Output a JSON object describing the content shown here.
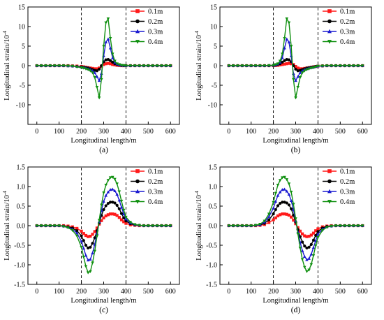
{
  "figure": {
    "panels": [
      {
        "caption": "(a)"
      },
      {
        "caption": "(b)"
      },
      {
        "caption": "(c)"
      },
      {
        "caption": "(d)"
      }
    ]
  },
  "chart_data": [
    {
      "type": "line",
      "panel_label": "(a)",
      "xlabel": "Longitudinal length/m",
      "ylabel": "Longitudinal strain/10",
      "ylabel_exponent": "-4",
      "xlim": [
        -40,
        640
      ],
      "ylim": [
        -15,
        15
      ],
      "xticks": [
        0,
        100,
        200,
        300,
        400,
        500,
        600
      ],
      "yticks": [
        -10,
        -5,
        0,
        5,
        10,
        15
      ],
      "ytick_labels": [
        "-10",
        "-5",
        "0",
        "5",
        "10",
        "15"
      ],
      "grid": false,
      "legend_position": "top-right",
      "reference_lines_x": [
        200,
        400
      ],
      "x": [
        0,
        20,
        40,
        60,
        80,
        100,
        120,
        140,
        160,
        180,
        200,
        210,
        220,
        230,
        240,
        250,
        260,
        270,
        280,
        290,
        300,
        310,
        320,
        330,
        340,
        350,
        360,
        370,
        380,
        390,
        400,
        420,
        440,
        460,
        480,
        500,
        520,
        540,
        560,
        580,
        600
      ],
      "series": [
        {
          "name": "0.1m",
          "color": "#ff1a1a",
          "marker": "square",
          "values": [
            0,
            0,
            0,
            0,
            0,
            0,
            0,
            0,
            -0.05,
            -0.1,
            -0.2,
            -0.3,
            -0.4,
            -0.5,
            -0.6,
            -0.7,
            -0.8,
            -0.8,
            -0.6,
            -0.2,
            0.3,
            0.5,
            0.6,
            0.5,
            0.3,
            0.2,
            0.1,
            0.05,
            0,
            0,
            0,
            0,
            0,
            0,
            0,
            0,
            0,
            0,
            0,
            0,
            0
          ]
        },
        {
          "name": "0.2m",
          "color": "#000000",
          "marker": "circle",
          "values": [
            0,
            0,
            0,
            0,
            0,
            0,
            0,
            -0.05,
            -0.1,
            -0.2,
            -0.3,
            -0.4,
            -0.5,
            -0.6,
            -0.8,
            -1.0,
            -1.2,
            -1.3,
            -0.9,
            0,
            1.0,
            1.5,
            1.6,
            1.3,
            0.9,
            0.5,
            0.3,
            0.15,
            0.05,
            0,
            0,
            0,
            0,
            0,
            0,
            0,
            0,
            0,
            0,
            0,
            0
          ]
        },
        {
          "name": "0.3m",
          "color": "#1a1ad0",
          "marker": "triangle-up",
          "values": [
            0,
            0,
            0,
            0,
            0,
            0,
            0,
            -0.05,
            -0.1,
            -0.2,
            -0.4,
            -0.5,
            -0.6,
            -0.8,
            -1.0,
            -1.3,
            -1.8,
            -2.8,
            -3.8,
            -2.0,
            2.5,
            6.0,
            6.8,
            4.5,
            2.0,
            0.8,
            0.4,
            0.2,
            0.1,
            0.05,
            0,
            0,
            0,
            0,
            0,
            0,
            0,
            0,
            0,
            0,
            0
          ]
        },
        {
          "name": "0.4m",
          "color": "#109010",
          "marker": "triangle-down",
          "values": [
            0,
            0,
            0,
            0,
            0,
            0,
            0,
            -0.05,
            -0.1,
            -0.3,
            -0.5,
            -0.6,
            -0.8,
            -1.0,
            -1.3,
            -1.8,
            -3.0,
            -5.5,
            -8.2,
            -3.5,
            5.0,
            11.0,
            12.0,
            7.0,
            3.0,
            1.2,
            0.5,
            0.3,
            0.1,
            0.05,
            0,
            0,
            0,
            0,
            0,
            0,
            0,
            0,
            0,
            0,
            0
          ]
        }
      ]
    },
    {
      "type": "line",
      "panel_label": "(b)",
      "xlabel": "Longitudinal length/m",
      "ylabel": "Longitudinal strain/10",
      "ylabel_exponent": "-4",
      "xlim": [
        -40,
        640
      ],
      "ylim": [
        -15,
        15
      ],
      "xticks": [
        0,
        100,
        200,
        300,
        400,
        500,
        600
      ],
      "yticks": [
        -10,
        -5,
        0,
        5,
        10,
        15
      ],
      "ytick_labels": [
        "-10",
        "-5",
        "0",
        "5",
        "10",
        "15"
      ],
      "grid": false,
      "legend_position": "top-right",
      "reference_lines_x": [
        200,
        400
      ],
      "x": [
        0,
        20,
        40,
        60,
        80,
        100,
        120,
        140,
        160,
        180,
        200,
        210,
        220,
        230,
        240,
        250,
        260,
        270,
        280,
        290,
        300,
        310,
        320,
        330,
        340,
        350,
        360,
        370,
        380,
        390,
        400,
        420,
        440,
        460,
        480,
        500,
        520,
        540,
        560,
        580,
        600
      ],
      "series": [
        {
          "name": "0.1m",
          "color": "#ff1a1a",
          "marker": "square",
          "values": [
            0,
            0,
            0,
            0,
            0,
            0,
            0,
            0,
            0,
            0,
            0,
            0.05,
            0.1,
            0.2,
            0.3,
            0.4,
            0.5,
            0.6,
            0.5,
            0.3,
            -0.2,
            -0.6,
            -0.8,
            -0.8,
            -0.7,
            -0.6,
            -0.5,
            -0.4,
            -0.3,
            -0.2,
            -0.1,
            -0.05,
            0,
            0,
            0,
            0,
            0,
            0,
            0,
            0,
            0
          ]
        },
        {
          "name": "0.2m",
          "color": "#000000",
          "marker": "circle",
          "values": [
            0,
            0,
            0,
            0,
            0,
            0,
            0,
            0,
            0,
            0,
            0.05,
            0.15,
            0.3,
            0.5,
            0.9,
            1.3,
            1.6,
            1.5,
            1.0,
            0,
            -0.9,
            -1.3,
            -1.2,
            -1.0,
            -0.8,
            -0.6,
            -0.5,
            -0.4,
            -0.3,
            -0.2,
            -0.1,
            -0.05,
            0,
            0,
            0,
            0,
            0,
            0,
            0,
            0,
            0
          ]
        },
        {
          "name": "0.3m",
          "color": "#1a1ad0",
          "marker": "triangle-up",
          "values": [
            0,
            0,
            0,
            0,
            0,
            0,
            0,
            0,
            0,
            0.05,
            0.1,
            0.2,
            0.4,
            0.8,
            2.0,
            4.5,
            6.8,
            6.0,
            2.5,
            -2.0,
            -3.8,
            -2.8,
            -1.8,
            -1.3,
            -1.0,
            -0.8,
            -0.6,
            -0.5,
            -0.4,
            -0.2,
            -0.1,
            -0.05,
            0,
            0,
            0,
            0,
            0,
            0,
            0,
            0,
            0
          ]
        },
        {
          "name": "0.4m",
          "color": "#109010",
          "marker": "triangle-down",
          "values": [
            0,
            0,
            0,
            0,
            0,
            0,
            0,
            0,
            0,
            0.05,
            0.1,
            0.3,
            0.5,
            1.2,
            3.0,
            7.0,
            12.0,
            11.0,
            5.0,
            -3.5,
            -8.2,
            -5.5,
            -3.0,
            -1.8,
            -1.3,
            -1.0,
            -0.8,
            -0.6,
            -0.5,
            -0.3,
            -0.1,
            -0.05,
            0,
            0,
            0,
            0,
            0,
            0,
            0,
            0,
            0
          ]
        }
      ]
    },
    {
      "type": "line",
      "panel_label": "(c)",
      "xlabel": "Longitudinal length/m",
      "ylabel": "Longitudinal strain/10",
      "ylabel_exponent": "-4",
      "xlim": [
        -40,
        640
      ],
      "ylim": [
        -1.5,
        1.5
      ],
      "xticks": [
        0,
        100,
        200,
        300,
        400,
        500,
        600
      ],
      "yticks": [
        -1.5,
        -1.0,
        -0.5,
        0.0,
        0.5,
        1.0,
        1.5
      ],
      "ytick_labels": [
        "-1.5",
        "-1.0",
        "-0.5",
        "0.0",
        "0.5",
        "1.0",
        "1.5"
      ],
      "grid": false,
      "legend_position": "top-right",
      "reference_lines_x": [
        200,
        400
      ],
      "x": [
        0,
        20,
        40,
        60,
        80,
        100,
        120,
        140,
        160,
        180,
        200,
        210,
        220,
        230,
        240,
        250,
        260,
        270,
        280,
        290,
        300,
        310,
        320,
        330,
        340,
        350,
        360,
        370,
        380,
        390,
        400,
        420,
        440,
        460,
        480,
        500,
        520,
        540,
        560,
        580,
        600
      ],
      "series": [
        {
          "name": "0.1m",
          "color": "#ff1a1a",
          "marker": "square",
          "values": [
            0,
            0,
            0,
            0,
            0,
            0,
            0,
            -0.01,
            -0.03,
            -0.07,
            -0.14,
            -0.2,
            -0.25,
            -0.28,
            -0.27,
            -0.22,
            -0.15,
            -0.06,
            0.04,
            0.13,
            0.2,
            0.25,
            0.28,
            0.3,
            0.3,
            0.29,
            0.26,
            0.21,
            0.15,
            0.1,
            0.06,
            0.02,
            0.01,
            0,
            0,
            0,
            0,
            0,
            0,
            0,
            0
          ]
        },
        {
          "name": "0.2m",
          "color": "#000000",
          "marker": "circle",
          "values": [
            0,
            0,
            0,
            0,
            0,
            0,
            -0.01,
            -0.03,
            -0.06,
            -0.13,
            -0.26,
            -0.38,
            -0.5,
            -0.57,
            -0.55,
            -0.45,
            -0.31,
            -0.13,
            0.07,
            0.26,
            0.41,
            0.51,
            0.57,
            0.6,
            0.6,
            0.58,
            0.52,
            0.43,
            0.31,
            0.2,
            0.12,
            0.05,
            0.02,
            0.01,
            0,
            0,
            0,
            0,
            0,
            0,
            0
          ]
        },
        {
          "name": "0.3m",
          "color": "#1a1ad0",
          "marker": "triangle-up",
          "values": [
            0,
            0,
            0,
            0,
            0,
            0,
            -0.01,
            -0.04,
            -0.09,
            -0.19,
            -0.4,
            -0.58,
            -0.76,
            -0.88,
            -0.86,
            -0.7,
            -0.48,
            -0.2,
            0.1,
            0.39,
            0.62,
            0.77,
            0.86,
            0.92,
            0.93,
            0.89,
            0.8,
            0.65,
            0.47,
            0.3,
            0.17,
            0.07,
            0.03,
            0.01,
            0,
            0,
            0,
            0,
            0,
            0,
            0
          ]
        },
        {
          "name": "0.4m",
          "color": "#109010",
          "marker": "triangle-down",
          "values": [
            0,
            0,
            0,
            0,
            0,
            0,
            -0.02,
            -0.05,
            -0.12,
            -0.26,
            -0.55,
            -0.8,
            -1.04,
            -1.2,
            -1.17,
            -0.95,
            -0.65,
            -0.27,
            0.14,
            0.53,
            0.84,
            1.04,
            1.16,
            1.23,
            1.24,
            1.19,
            1.07,
            0.87,
            0.63,
            0.4,
            0.22,
            0.09,
            0.03,
            0.01,
            0,
            0,
            0,
            0,
            0,
            0,
            0
          ]
        }
      ]
    },
    {
      "type": "line",
      "panel_label": "(d)",
      "xlabel": "Longitudinal length/m",
      "ylabel": "Longitudinal strain/10",
      "ylabel_exponent": "-4",
      "xlim": [
        -40,
        640
      ],
      "ylim": [
        -1.5,
        1.5
      ],
      "xticks": [
        0,
        100,
        200,
        300,
        400,
        500,
        600
      ],
      "yticks": [
        -1.5,
        -1.0,
        -0.5,
        0.0,
        0.5,
        1.0,
        1.5
      ],
      "ytick_labels": [
        "-1.5",
        "-1.0",
        "-0.5",
        "0.0",
        "0.5",
        "1.0",
        "1.5"
      ],
      "grid": false,
      "legend_position": "top-right",
      "reference_lines_x": [
        200,
        400
      ],
      "x": [
        0,
        20,
        40,
        60,
        80,
        100,
        120,
        140,
        160,
        180,
        200,
        210,
        220,
        230,
        240,
        250,
        260,
        270,
        280,
        290,
        300,
        310,
        320,
        330,
        340,
        350,
        360,
        370,
        380,
        390,
        400,
        420,
        440,
        460,
        480,
        500,
        520,
        540,
        560,
        580,
        600
      ],
      "series": [
        {
          "name": "0.1m",
          "color": "#ff1a1a",
          "marker": "square",
          "values": [
            0,
            0,
            0,
            0,
            0,
            0,
            0,
            0.01,
            0.03,
            0.08,
            0.15,
            0.2,
            0.25,
            0.28,
            0.3,
            0.3,
            0.29,
            0.27,
            0.22,
            0.14,
            0.05,
            -0.05,
            -0.14,
            -0.21,
            -0.26,
            -0.28,
            -0.27,
            -0.24,
            -0.19,
            -0.13,
            -0.08,
            -0.03,
            -0.01,
            0,
            0,
            0,
            0,
            0,
            0,
            0,
            0
          ]
        },
        {
          "name": "0.2m",
          "color": "#000000",
          "marker": "circle",
          "values": [
            0,
            0,
            0,
            0,
            0,
            0,
            0.01,
            0.02,
            0.06,
            0.15,
            0.3,
            0.41,
            0.51,
            0.57,
            0.6,
            0.6,
            0.58,
            0.53,
            0.43,
            0.27,
            0.09,
            -0.1,
            -0.28,
            -0.42,
            -0.52,
            -0.57,
            -0.55,
            -0.48,
            -0.37,
            -0.25,
            -0.15,
            -0.06,
            -0.02,
            -0.01,
            0,
            0,
            0,
            0,
            0,
            0,
            0
          ]
        },
        {
          "name": "0.3m",
          "color": "#1a1ad0",
          "marker": "triangle-up",
          "values": [
            0,
            0,
            0,
            0,
            0,
            0,
            0.01,
            0.03,
            0.09,
            0.23,
            0.45,
            0.62,
            0.77,
            0.86,
            0.92,
            0.93,
            0.88,
            0.8,
            0.64,
            0.41,
            0.13,
            -0.16,
            -0.42,
            -0.64,
            -0.79,
            -0.87,
            -0.84,
            -0.73,
            -0.56,
            -0.38,
            -0.22,
            -0.09,
            -0.03,
            -0.01,
            0,
            0,
            0,
            0,
            0,
            0,
            0
          ]
        },
        {
          "name": "0.4m",
          "color": "#109010",
          "marker": "triangle-down",
          "values": [
            0,
            0,
            0,
            0,
            0,
            0,
            0.01,
            0.04,
            0.12,
            0.3,
            0.6,
            0.83,
            1.04,
            1.16,
            1.23,
            1.24,
            1.18,
            1.07,
            0.86,
            0.55,
            0.18,
            -0.21,
            -0.57,
            -0.86,
            -1.06,
            -1.17,
            -1.13,
            -0.99,
            -0.76,
            -0.51,
            -0.3,
            -0.12,
            -0.04,
            -0.01,
            0,
            0,
            0,
            0,
            0,
            0,
            0
          ]
        }
      ]
    }
  ]
}
